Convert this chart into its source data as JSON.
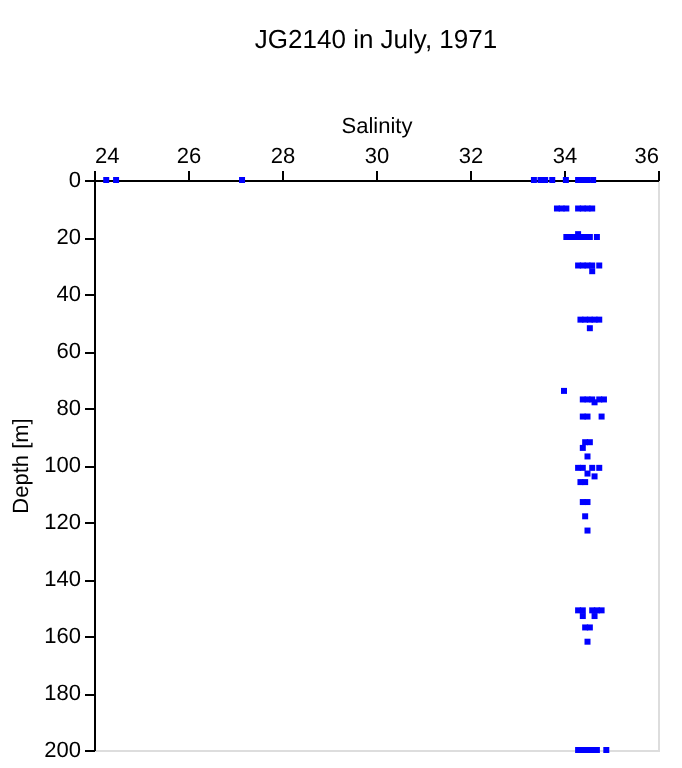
{
  "chart_data": {
    "type": "scatter",
    "title": "JG2140 in July, 1971",
    "xlabel": "Salinity",
    "ylabel": "Depth [m]",
    "x": [
      24.26,
      24.47,
      27.15,
      33.36,
      33.5,
      33.6,
      33.75,
      34.04,
      34.3,
      34.4,
      34.5,
      34.62,
      33.85,
      33.95,
      34.05,
      34.3,
      34.4,
      34.5,
      34.6,
      34.3,
      34.05,
      34.15,
      34.25,
      34.35,
      34.45,
      34.55,
      34.7,
      34.3,
      34.4,
      34.5,
      34.6,
      34.75,
      34.6,
      34.35,
      34.45,
      34.55,
      34.65,
      34.75,
      34.55,
      34.0,
      34.4,
      34.5,
      34.6,
      34.75,
      34.85,
      34.65,
      34.4,
      34.5,
      34.8,
      34.45,
      34.55,
      34.4,
      34.5,
      34.3,
      34.4,
      34.6,
      34.75,
      34.5,
      34.65,
      34.35,
      34.45,
      34.4,
      34.5,
      34.45,
      34.5,
      34.3,
      34.4,
      34.6,
      34.7,
      34.8,
      34.4,
      34.65,
      34.45,
      34.55,
      34.5,
      34.3,
      34.4,
      34.5,
      34.6,
      34.7,
      34.9
    ],
    "series": [
      {
        "color": "#0000ff",
        "values": [
          0,
          0,
          0,
          0,
          0,
          0,
          0,
          0,
          0,
          0,
          0,
          0,
          10,
          10,
          10,
          10,
          10,
          10,
          10,
          19,
          20,
          20,
          20,
          20,
          20,
          20,
          20,
          30,
          30,
          30,
          30,
          30,
          32,
          49,
          49,
          49,
          49,
          49,
          52,
          74,
          77,
          77,
          77,
          77,
          77,
          78,
          83,
          83,
          83,
          92,
          92,
          94,
          97,
          101,
          101,
          101,
          101,
          103,
          104,
          106,
          106,
          113,
          113,
          118,
          123,
          151,
          151,
          151,
          151,
          151,
          153,
          153,
          157,
          157,
          162,
          200,
          200,
          200,
          200,
          200,
          200
        ]
      }
    ],
    "xlim": [
      24,
      36
    ],
    "xticks": [
      24,
      26,
      28,
      30,
      32,
      34,
      36
    ],
    "ylim": [
      200,
      0
    ],
    "yticks": [
      0,
      20,
      40,
      60,
      80,
      100,
      120,
      140,
      160,
      180,
      200
    ],
    "marker": "square",
    "grid": false,
    "legend": false
  }
}
